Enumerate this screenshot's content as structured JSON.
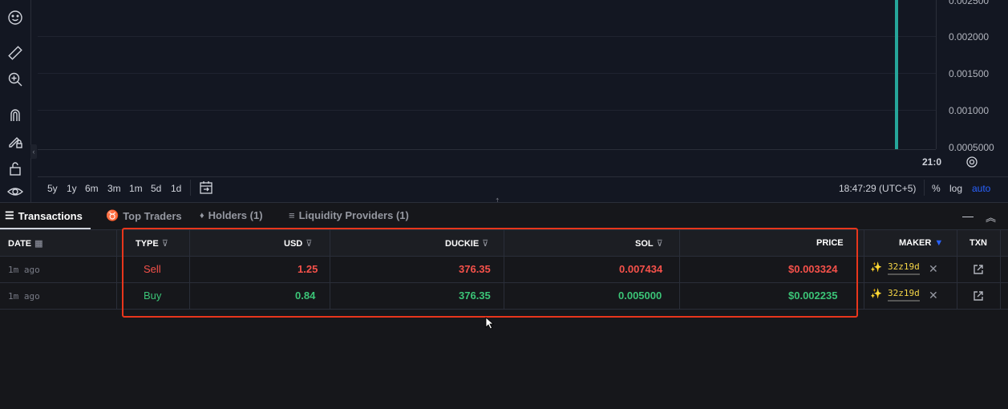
{
  "chart": {
    "price_labels": [
      "0.002500",
      "0.002000",
      "0.001500",
      "0.001000",
      "0.0005000"
    ],
    "time_label": "21:0",
    "candle_color": "#26a69a"
  },
  "periods": [
    "5y",
    "1y",
    "6m",
    "3m",
    "1m",
    "5d",
    "1d"
  ],
  "time_display": "18:47:29 (UTC+5)",
  "scale": {
    "percent": "%",
    "log": "log",
    "auto": "auto"
  },
  "tabs": [
    {
      "label": "Transactions",
      "icon": "list-icon",
      "active": true
    },
    {
      "label": "Top Traders",
      "icon": "medal-icon",
      "active": false
    },
    {
      "label": "Holders (1)",
      "icon": "diamond-icon",
      "active": false
    },
    {
      "label": "Liquidity Providers (1)",
      "icon": "lines-icon",
      "active": false
    }
  ],
  "columns": {
    "date": "DATE",
    "type": "TYPE",
    "usd": "USD",
    "duckie": "DUCKIE",
    "sol": "SOL",
    "price": "PRICE",
    "maker": "MAKER",
    "txn": "TXN"
  },
  "rows": [
    {
      "date": "1m ago",
      "type": "Sell",
      "usd": "1.25",
      "duckie": "376.35",
      "sol": "0.007434",
      "price": "$0.003324",
      "maker": "32z19d",
      "side": "sell"
    },
    {
      "date": "1m ago",
      "type": "Buy",
      "usd": "0.84",
      "duckie": "376.35",
      "sol": "0.005000",
      "price": "$0.002235",
      "maker": "32z19d",
      "side": "buy"
    }
  ],
  "colors": {
    "sell": "#f5514a",
    "buy": "#3bc477",
    "highlight": "#e8361c",
    "accent": "#2962ff"
  }
}
